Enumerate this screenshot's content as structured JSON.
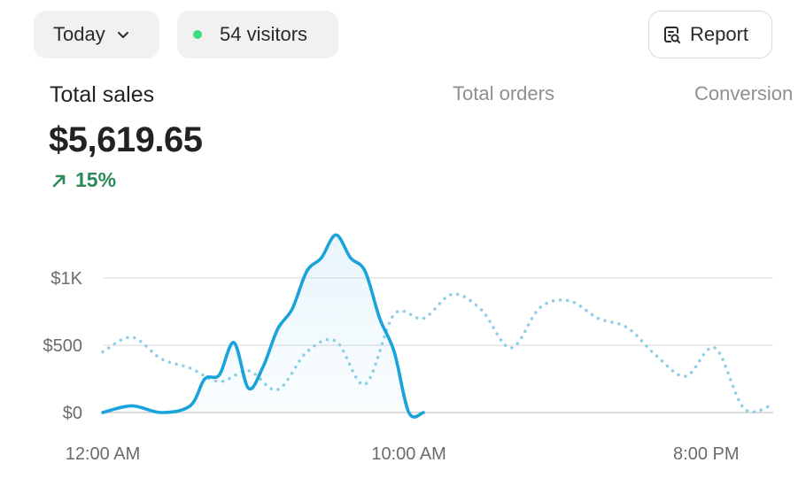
{
  "header": {
    "date_filter": {
      "label": "Today",
      "icon": "chevron-down-icon"
    },
    "visitors": {
      "label": "54 visitors",
      "status_color": "#3ddc84"
    },
    "report_button": {
      "label": "Report",
      "icon": "report-search-icon"
    }
  },
  "metrics": {
    "total_sales": {
      "label": "Total sales",
      "value": "$5,619.65",
      "change": "15%",
      "change_icon": "arrow-up-right-icon",
      "change_color": "#2b8a5a"
    },
    "total_orders": {
      "label": "Total orders"
    },
    "conversion": {
      "label": "Conversion"
    }
  },
  "chart_data": {
    "type": "line",
    "x_tick_labels": [
      "12:00 AM",
      "10:00 AM",
      "8:00 PM"
    ],
    "y_tick_labels": [
      "$0",
      "$500",
      "$1K"
    ],
    "ylim": [
      0,
      1500
    ],
    "grid": true,
    "series": [
      {
        "style": "solid",
        "color": "#1aa3db",
        "x": [
          0,
          1,
          2,
          3,
          3.5,
          4,
          4.5,
          5,
          5.5,
          6,
          6.5,
          7,
          7.5,
          8,
          8.5,
          9,
          9.5,
          10,
          10.5,
          11
        ],
        "y": [
          0,
          50,
          0,
          50,
          250,
          280,
          520,
          180,
          340,
          620,
          770,
          1050,
          1150,
          1320,
          1150,
          1050,
          700,
          450,
          0,
          0
        ]
      },
      {
        "style": "dotted",
        "color": "#8ecfe6",
        "x": [
          0,
          1,
          2,
          3,
          4,
          5,
          6,
          7,
          8,
          9,
          10,
          11,
          12,
          13,
          14,
          15,
          16,
          17,
          18,
          19,
          20,
          21,
          22,
          23
        ],
        "y": [
          450,
          560,
          400,
          330,
          230,
          310,
          170,
          450,
          530,
          210,
          730,
          700,
          880,
          760,
          480,
          780,
          830,
          700,
          630,
          420,
          270,
          480,
          30,
          60
        ]
      }
    ]
  }
}
